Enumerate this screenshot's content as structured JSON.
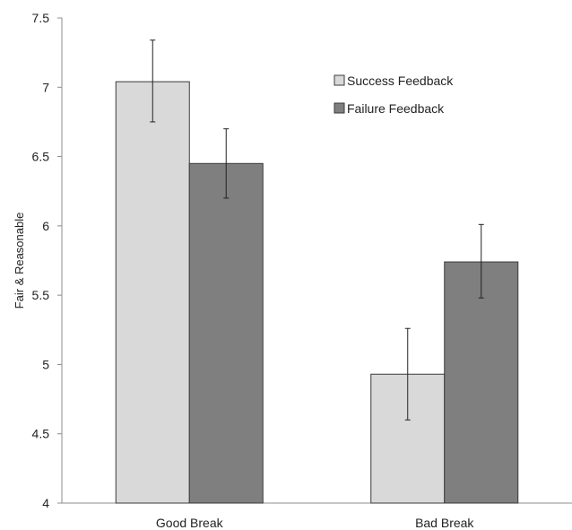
{
  "chart_data": {
    "type": "bar",
    "title": "",
    "xlabel": "",
    "ylabel": "Fair & Reasonable",
    "ylim": [
      4,
      7.5
    ],
    "yticks": [
      4,
      4.5,
      5,
      5.5,
      6,
      6.5,
      7,
      7.5
    ],
    "ytick_labels": [
      "4",
      "4.5",
      "5",
      "5.5",
      "6",
      "6.5",
      "7",
      "7.5"
    ],
    "grid": false,
    "legend_position": "top-right",
    "categories": [
      "Good Break",
      "Bad Break"
    ],
    "series": [
      {
        "name": "Success Feedback",
        "color": "#d9d9d9",
        "values": [
          7.04,
          4.93
        ],
        "error_low": [
          6.75,
          4.6
        ],
        "error_high": [
          7.34,
          5.26
        ]
      },
      {
        "name": "Failure Feedback",
        "color": "#7f7f7f",
        "values": [
          6.45,
          5.74
        ],
        "error_low": [
          6.2,
          5.48
        ],
        "error_high": [
          6.7,
          6.01
        ]
      }
    ]
  }
}
